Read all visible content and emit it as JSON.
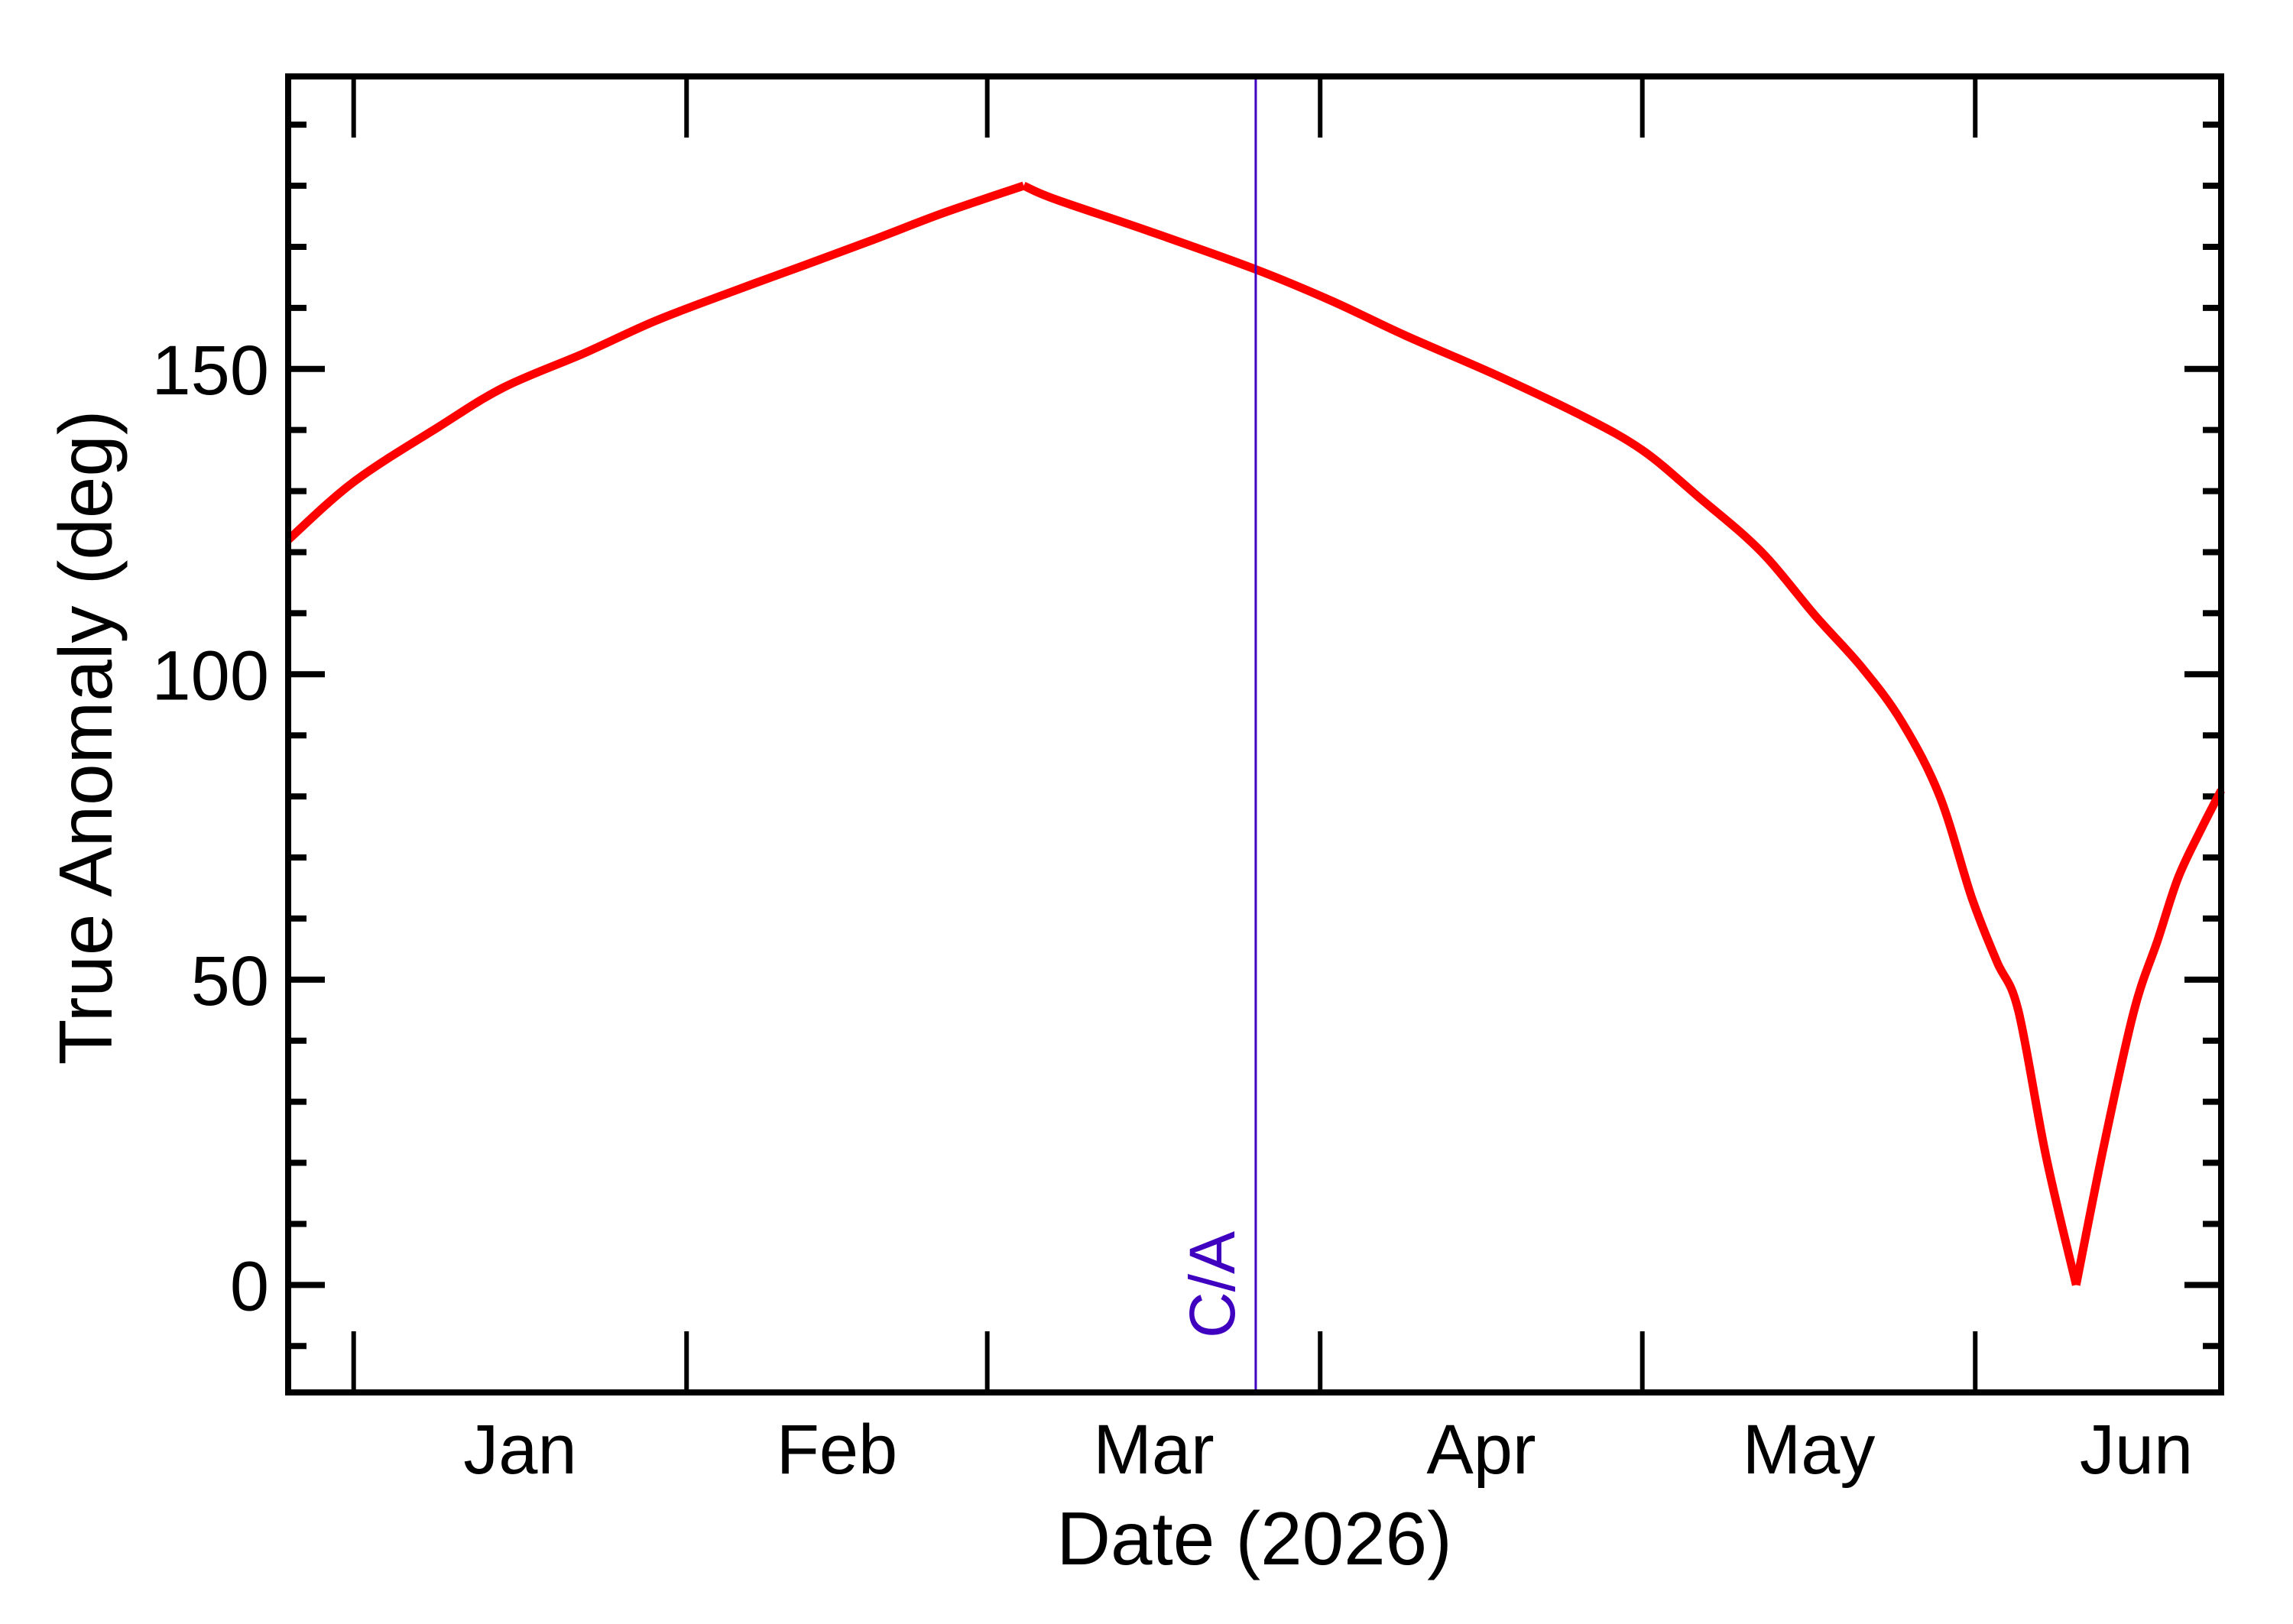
{
  "chart_data": {
    "type": "line",
    "title": "",
    "xlabel": "Date (2026)",
    "ylabel": "True Anomaly (deg)",
    "x_units": "days since 2026-01-01",
    "xlim": [
      -6.1,
      173.9
    ],
    "ylim": [
      -17.6,
      197.9
    ],
    "grid": false,
    "legend": null,
    "x_ticks": [
      {
        "day": 0,
        "label": ""
      },
      {
        "day": 31,
        "label": ""
      },
      {
        "day": 59,
        "label": ""
      },
      {
        "day": 90,
        "label": ""
      },
      {
        "day": 120,
        "label": ""
      },
      {
        "day": 151,
        "label": ""
      }
    ],
    "x_tick_labels": [
      {
        "day": 15.5,
        "label": "Jan"
      },
      {
        "day": 45,
        "label": "Feb"
      },
      {
        "day": 74.5,
        "label": "Mar"
      },
      {
        "day": 105,
        "label": "Apr"
      },
      {
        "day": 135.5,
        "label": "May"
      },
      {
        "day": 166,
        "label": "Jun"
      }
    ],
    "y_major_ticks": [
      0,
      50,
      100,
      150
    ],
    "y_tick_labels": [
      "0",
      "50",
      "100",
      "150"
    ],
    "y_minor_step": 10,
    "series": [
      {
        "name": "True Anomaly",
        "color": "#ff0000",
        "segments": [
          [
            [
              -6.1,
              122.0
            ],
            [
              0.0,
              131.5
            ],
            [
              7.9,
              140.5
            ],
            [
              14.0,
              147.0
            ],
            [
              21.5,
              152.6
            ],
            [
              28.0,
              157.8
            ],
            [
              35.0,
              162.5
            ],
            [
              42.0,
              167.0
            ],
            [
              48.6,
              171.3
            ],
            [
              55.0,
              175.6
            ],
            [
              62.4,
              180.0
            ]
          ],
          [
            [
              62.4,
              180.0
            ],
            [
              65.3,
              177.8
            ],
            [
              74.0,
              172.6
            ],
            [
              84.0,
              166.3
            ],
            [
              91.0,
              161.2
            ],
            [
              97.9,
              155.5
            ],
            [
              106.0,
              149.3
            ],
            [
              114.3,
              142.4
            ],
            [
              120.0,
              136.7
            ],
            [
              125.2,
              129.1
            ],
            [
              131.0,
              120.2
            ],
            [
              136.1,
              109.6
            ],
            [
              140.5,
              101.0
            ],
            [
              144.2,
              92.1
            ],
            [
              147.7,
              80.0
            ],
            [
              150.7,
              63.3
            ],
            [
              153.0,
              53.0
            ],
            [
              155.0,
              45.0
            ],
            [
              157.6,
              21.0
            ],
            [
              160.4,
              0.0
            ]
          ],
          [
            [
              160.4,
              0.0
            ],
            [
              163.0,
              23.0
            ],
            [
              165.8,
              45.0
            ],
            [
              168.0,
              56.5
            ],
            [
              169.9,
              66.7
            ],
            [
              172.0,
              74.5
            ],
            [
              173.9,
              81.0
            ]
          ]
        ]
      }
    ],
    "annotations": [
      {
        "type": "vline",
        "day": 84.0,
        "label": "C/A",
        "color": "#4000c0"
      },
      {
        "type": "peak",
        "day": 62.4,
        "value": 180
      },
      {
        "type": "minimum",
        "day": 160.4,
        "value": 0
      }
    ]
  },
  "labels": {
    "xlabel": "Date (2026)",
    "ylabel": "True Anomaly (deg)",
    "ca_marker": "C/A"
  },
  "colors": {
    "curve": "#ff0000",
    "ca_line": "#4000c0",
    "axes": "#000000",
    "background": "#ffffff"
  }
}
